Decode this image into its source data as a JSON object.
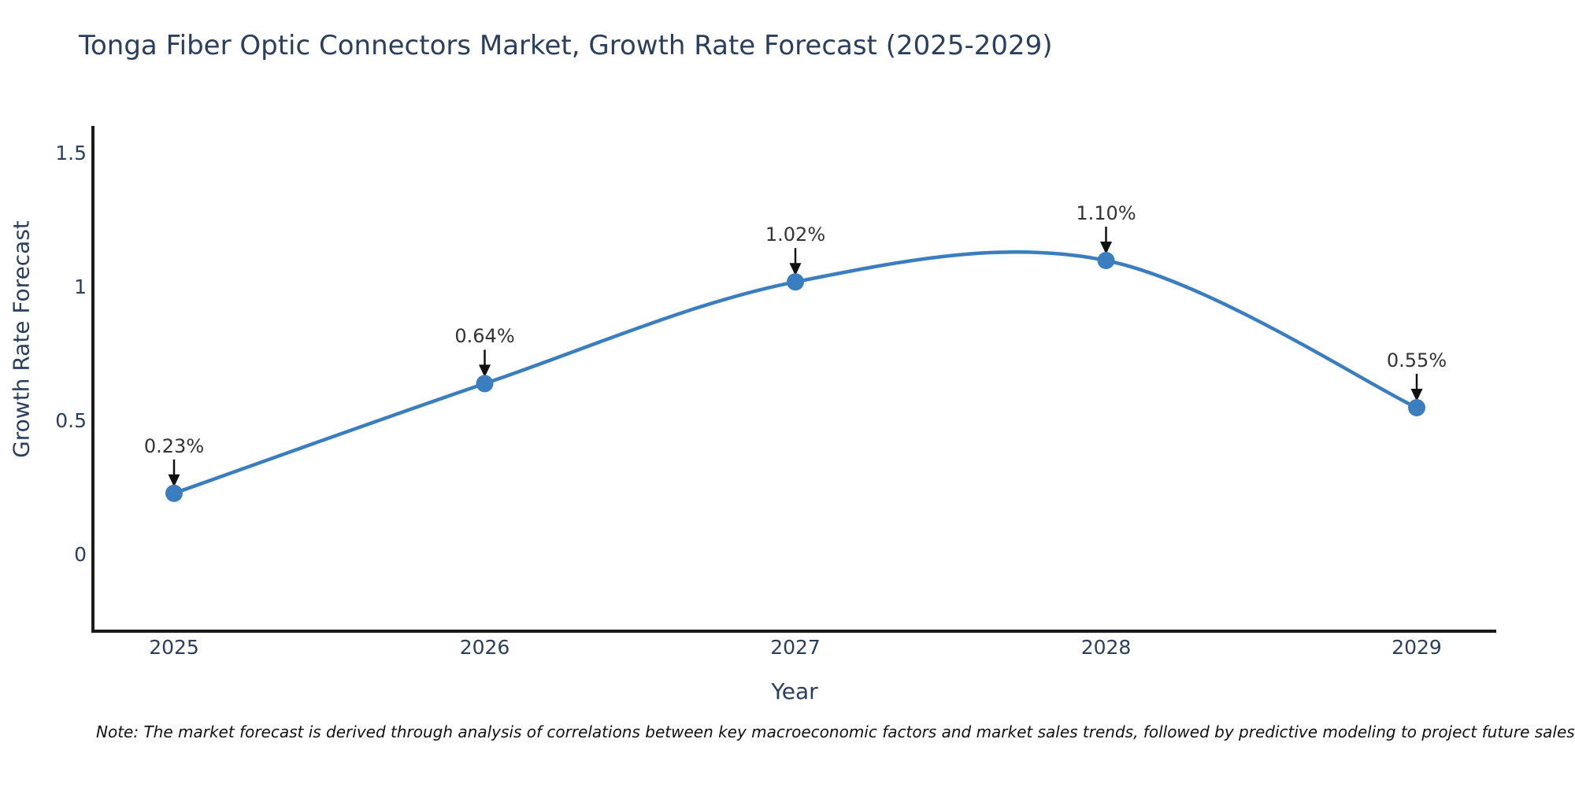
{
  "chart_data": {
    "type": "line",
    "title": "Tonga Fiber Optic Connectors Market, Growth Rate Forecast (2025-2029)",
    "x": [
      "2025",
      "2026",
      "2027",
      "2028",
      "2029"
    ],
    "series": [
      {
        "name": "Growth Rate Forecast",
        "values": [
          0.23,
          0.64,
          1.02,
          1.1,
          0.55
        ]
      }
    ],
    "point_labels": [
      "0.23%",
      "0.64%",
      "1.02%",
      "1.10%",
      "0.55%"
    ],
    "xlabel": "Year",
    "ylabel": "Growth Rate Forecast",
    "yticks": [
      0,
      0.5,
      1,
      1.5
    ],
    "ylim": [
      -0.29,
      1.59
    ],
    "line_shape": "spline",
    "grid": false,
    "legend": "none",
    "colors": {
      "line": "#3a7ebf",
      "marker": "#3a7ebf",
      "axis_line": "#1a1a1a",
      "tick_text": "#2a3f5f",
      "annotation_text": "#333333",
      "arrow": "#111111",
      "background": "#ffffff"
    }
  },
  "footnote": {
    "text": "Note: The market forecast is derived through analysis of correlations between key macroeconomic factors and market sales trends, followed by predictive modeling to project future sales"
  }
}
